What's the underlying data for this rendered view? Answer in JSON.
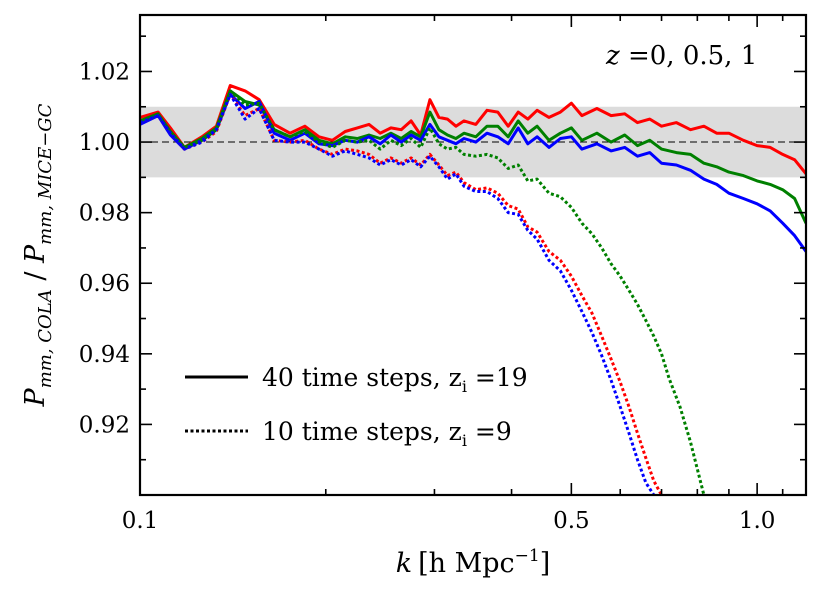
{
  "chart_data": {
    "type": "line",
    "xscale": "log",
    "xlim": [
      0.1,
      1.2
    ],
    "ylim": [
      0.9,
      1.036
    ],
    "xlabel": "k [h Mpc^-1]",
    "xlabel_parts": {
      "k": "k",
      "unit": "[h Mpc",
      "exp": "−1",
      "close": "]"
    },
    "ylabel_parts": {
      "main": "P",
      "sub1": "mm, COLA",
      "sep": " / ",
      "main2": "P",
      "sub2": "mm, MICE−GC"
    },
    "x_ticks": [
      {
        "value": 0.1,
        "label": "0.1"
      },
      {
        "value": 0.5,
        "label": "0.5"
      },
      {
        "value": 1.0,
        "label": "1.0"
      }
    ],
    "y_ticks": [
      {
        "value": 0.92,
        "label": "0.92"
      },
      {
        "value": 0.94,
        "label": "0.94"
      },
      {
        "value": 0.96,
        "label": "0.96"
      },
      {
        "value": 0.98,
        "label": "0.98"
      },
      {
        "value": 1.0,
        "label": "1.00"
      },
      {
        "value": 1.02,
        "label": "1.02"
      }
    ],
    "band": {
      "low": 0.99,
      "high": 1.01,
      "color": "#dcdcdc"
    },
    "reference_line": {
      "value": 1.0
    },
    "annotation": {
      "prefix": "z",
      "rest": " =0, 0.5, 1"
    },
    "legend": [
      {
        "style": "solid",
        "text": "40 time steps, z",
        "sub": "i",
        "tail": " =19"
      },
      {
        "style": "dotted",
        "text": "10 time steps, z",
        "sub": "i",
        "tail": " =9"
      }
    ],
    "series": [
      {
        "name": "z=0, 40 steps",
        "color": "#ff0000",
        "style": "solid",
        "x": [
          0.1,
          0.107,
          0.112,
          0.118,
          0.126,
          0.133,
          0.14,
          0.148,
          0.156,
          0.165,
          0.175,
          0.185,
          0.195,
          0.205,
          0.215,
          0.225,
          0.235,
          0.245,
          0.255,
          0.265,
          0.275,
          0.285,
          0.295,
          0.305,
          0.315,
          0.325,
          0.335,
          0.35,
          0.365,
          0.38,
          0.395,
          0.41,
          0.425,
          0.44,
          0.46,
          0.48,
          0.5,
          0.52,
          0.55,
          0.58,
          0.61,
          0.64,
          0.67,
          0.7,
          0.74,
          0.78,
          0.82,
          0.86,
          0.9,
          0.95,
          1.0,
          1.05,
          1.1,
          1.15,
          1.2
        ],
        "y": [
          1.007,
          1.0085,
          1.004,
          0.9985,
          1.0015,
          1.0045,
          1.016,
          1.0145,
          1.012,
          1.005,
          1.0025,
          1.0045,
          1.0015,
          1.0005,
          1.003,
          1.004,
          1.005,
          1.0025,
          1.004,
          1.0035,
          1.006,
          1.002,
          1.012,
          1.007,
          1.0065,
          1.0045,
          1.006,
          1.005,
          1.009,
          1.0085,
          1.0045,
          1.0085,
          1.0065,
          1.009,
          1.007,
          1.0085,
          1.011,
          1.0075,
          1.0095,
          1.0075,
          1.008,
          1.0055,
          1.0065,
          1.0045,
          1.0055,
          1.0035,
          1.0045,
          1.0025,
          1.0025,
          1.0005,
          0.999,
          0.9985,
          0.9965,
          0.995,
          0.991
        ]
      },
      {
        "name": "z=0.5, 40 steps",
        "color": "#008000",
        "style": "solid",
        "x": [
          0.1,
          0.107,
          0.112,
          0.118,
          0.126,
          0.133,
          0.14,
          0.148,
          0.156,
          0.165,
          0.175,
          0.185,
          0.195,
          0.205,
          0.215,
          0.225,
          0.235,
          0.245,
          0.255,
          0.265,
          0.275,
          0.285,
          0.295,
          0.305,
          0.315,
          0.325,
          0.335,
          0.35,
          0.365,
          0.38,
          0.395,
          0.41,
          0.425,
          0.44,
          0.46,
          0.48,
          0.5,
          0.52,
          0.55,
          0.58,
          0.61,
          0.64,
          0.67,
          0.7,
          0.74,
          0.78,
          0.82,
          0.86,
          0.9,
          0.95,
          1.0,
          1.05,
          1.1,
          1.15,
          1.2
        ],
        "y": [
          1.006,
          1.008,
          1.003,
          0.9985,
          1.001,
          1.004,
          1.0145,
          1.0115,
          1.0105,
          1.0035,
          1.0015,
          1.0035,
          1.0005,
          0.9995,
          1.0015,
          1.001,
          1.002,
          1.001,
          1.0025,
          1.001,
          1.003,
          1.0015,
          1.0085,
          1.0035,
          1.002,
          1.001,
          1.0025,
          1.0015,
          1.0045,
          1.0045,
          1.0015,
          1.006,
          1.0025,
          1.0045,
          1.0005,
          1.0025,
          1.004,
          1.0005,
          1.0025,
          1.0,
          1.002,
          0.999,
          1.0005,
          0.998,
          0.997,
          0.9965,
          0.994,
          0.993,
          0.9915,
          0.9905,
          0.989,
          0.988,
          0.9865,
          0.984,
          0.977
        ]
      },
      {
        "name": "z=1, 40 steps",
        "color": "#0000ff",
        "style": "solid",
        "x": [
          0.1,
          0.107,
          0.112,
          0.118,
          0.126,
          0.133,
          0.14,
          0.148,
          0.156,
          0.165,
          0.175,
          0.185,
          0.195,
          0.205,
          0.215,
          0.225,
          0.235,
          0.245,
          0.255,
          0.265,
          0.275,
          0.285,
          0.295,
          0.305,
          0.315,
          0.325,
          0.335,
          0.35,
          0.365,
          0.38,
          0.395,
          0.41,
          0.425,
          0.44,
          0.46,
          0.48,
          0.5,
          0.52,
          0.55,
          0.58,
          0.61,
          0.64,
          0.67,
          0.7,
          0.74,
          0.78,
          0.82,
          0.86,
          0.9,
          0.95,
          1.0,
          1.05,
          1.1,
          1.15,
          1.2
        ],
        "y": [
          1.005,
          1.0075,
          1.002,
          0.998,
          1.0005,
          1.0035,
          1.0135,
          1.0095,
          1.0115,
          1.0025,
          1.0005,
          1.0025,
          0.9995,
          0.999,
          1.0005,
          1.0,
          1.0015,
          0.9995,
          1.002,
          1.0,
          1.002,
          1.0005,
          1.005,
          1.0015,
          1.0005,
          0.9995,
          1.001,
          1.0,
          1.0025,
          1.0015,
          0.9995,
          1.004,
          0.9995,
          1.0015,
          0.9985,
          1.001,
          1.0015,
          0.998,
          0.9995,
          0.9975,
          0.9985,
          0.996,
          0.997,
          0.994,
          0.9935,
          0.992,
          0.9895,
          0.988,
          0.9855,
          0.984,
          0.9825,
          0.9805,
          0.977,
          0.9735,
          0.969
        ]
      },
      {
        "name": "z=0, 10 steps",
        "color": "#ff0000",
        "style": "dotted",
        "x": [
          0.1,
          0.107,
          0.112,
          0.118,
          0.126,
          0.133,
          0.14,
          0.148,
          0.156,
          0.165,
          0.175,
          0.185,
          0.195,
          0.205,
          0.215,
          0.225,
          0.235,
          0.245,
          0.255,
          0.265,
          0.275,
          0.285,
          0.295,
          0.305,
          0.315,
          0.325,
          0.335,
          0.35,
          0.365,
          0.38,
          0.395,
          0.41,
          0.425,
          0.44,
          0.46,
          0.48,
          0.5,
          0.52,
          0.54,
          0.56,
          0.58,
          0.6,
          0.62,
          0.64,
          0.66,
          0.68,
          0.7
        ],
        "y": [
          1.0055,
          1.0075,
          1.0025,
          0.998,
          1.0,
          1.003,
          1.0135,
          1.0075,
          1.0095,
          1.0005,
          1.0,
          1.0005,
          0.998,
          0.9965,
          0.998,
          0.9975,
          0.9965,
          0.994,
          0.9955,
          0.994,
          0.9955,
          0.9935,
          0.9965,
          0.9935,
          0.9905,
          0.9915,
          0.9885,
          0.9865,
          0.987,
          0.9855,
          0.982,
          0.981,
          0.976,
          0.9745,
          0.969,
          0.9665,
          0.962,
          0.9565,
          0.9515,
          0.945,
          0.9385,
          0.932,
          0.925,
          0.9175,
          0.9105,
          0.904,
          0.9
        ]
      },
      {
        "name": "z=0.5, 10 steps",
        "color": "#008000",
        "style": "dotted",
        "x": [
          0.1,
          0.107,
          0.112,
          0.118,
          0.126,
          0.133,
          0.14,
          0.148,
          0.156,
          0.165,
          0.175,
          0.185,
          0.195,
          0.205,
          0.215,
          0.225,
          0.235,
          0.245,
          0.255,
          0.265,
          0.275,
          0.285,
          0.295,
          0.305,
          0.315,
          0.325,
          0.335,
          0.35,
          0.365,
          0.38,
          0.395,
          0.41,
          0.425,
          0.44,
          0.46,
          0.48,
          0.5,
          0.52,
          0.54,
          0.56,
          0.58,
          0.6,
          0.62,
          0.64,
          0.66,
          0.68,
          0.7,
          0.72,
          0.75,
          0.78,
          0.82
        ],
        "y": [
          1.006,
          1.0075,
          1.003,
          0.9985,
          1.0005,
          1.0035,
          1.0145,
          1.0105,
          1.011,
          1.0035,
          1.0015,
          1.003,
          1.0,
          0.9985,
          1.0005,
          1.0,
          1.0005,
          0.998,
          1.0005,
          0.999,
          1.001,
          0.9985,
          1.004,
          0.9995,
          0.998,
          0.9985,
          0.9965,
          0.996,
          0.9965,
          0.9955,
          0.9925,
          0.9935,
          0.989,
          0.9895,
          0.9855,
          0.9845,
          0.9815,
          0.977,
          0.974,
          0.97,
          0.9655,
          0.962,
          0.958,
          0.954,
          0.9495,
          0.945,
          0.94,
          0.933,
          0.925,
          0.915,
          0.9
        ]
      },
      {
        "name": "z=1, 10 steps",
        "color": "#0000ff",
        "style": "dotted",
        "x": [
          0.1,
          0.107,
          0.112,
          0.118,
          0.126,
          0.133,
          0.14,
          0.148,
          0.156,
          0.165,
          0.175,
          0.185,
          0.195,
          0.205,
          0.215,
          0.225,
          0.235,
          0.245,
          0.255,
          0.265,
          0.275,
          0.285,
          0.295,
          0.305,
          0.315,
          0.325,
          0.335,
          0.35,
          0.365,
          0.38,
          0.395,
          0.41,
          0.425,
          0.44,
          0.46,
          0.48,
          0.5,
          0.52,
          0.54,
          0.56,
          0.58,
          0.6,
          0.62,
          0.64,
          0.66,
          0.68
        ],
        "y": [
          1.0055,
          1.0075,
          1.0025,
          0.998,
          1.0,
          1.0035,
          1.0135,
          1.0065,
          1.0095,
          1.0005,
          1.0,
          1.0,
          0.998,
          0.996,
          0.9975,
          0.9965,
          0.9955,
          0.9935,
          0.995,
          0.9935,
          0.995,
          0.993,
          0.996,
          0.993,
          0.9895,
          0.991,
          0.9875,
          0.986,
          0.986,
          0.984,
          0.98,
          0.9795,
          0.975,
          0.9725,
          0.9665,
          0.9635,
          0.958,
          0.952,
          0.946,
          0.9395,
          0.9325,
          0.925,
          0.9175,
          0.91,
          0.9035,
          0.9
        ]
      }
    ]
  }
}
